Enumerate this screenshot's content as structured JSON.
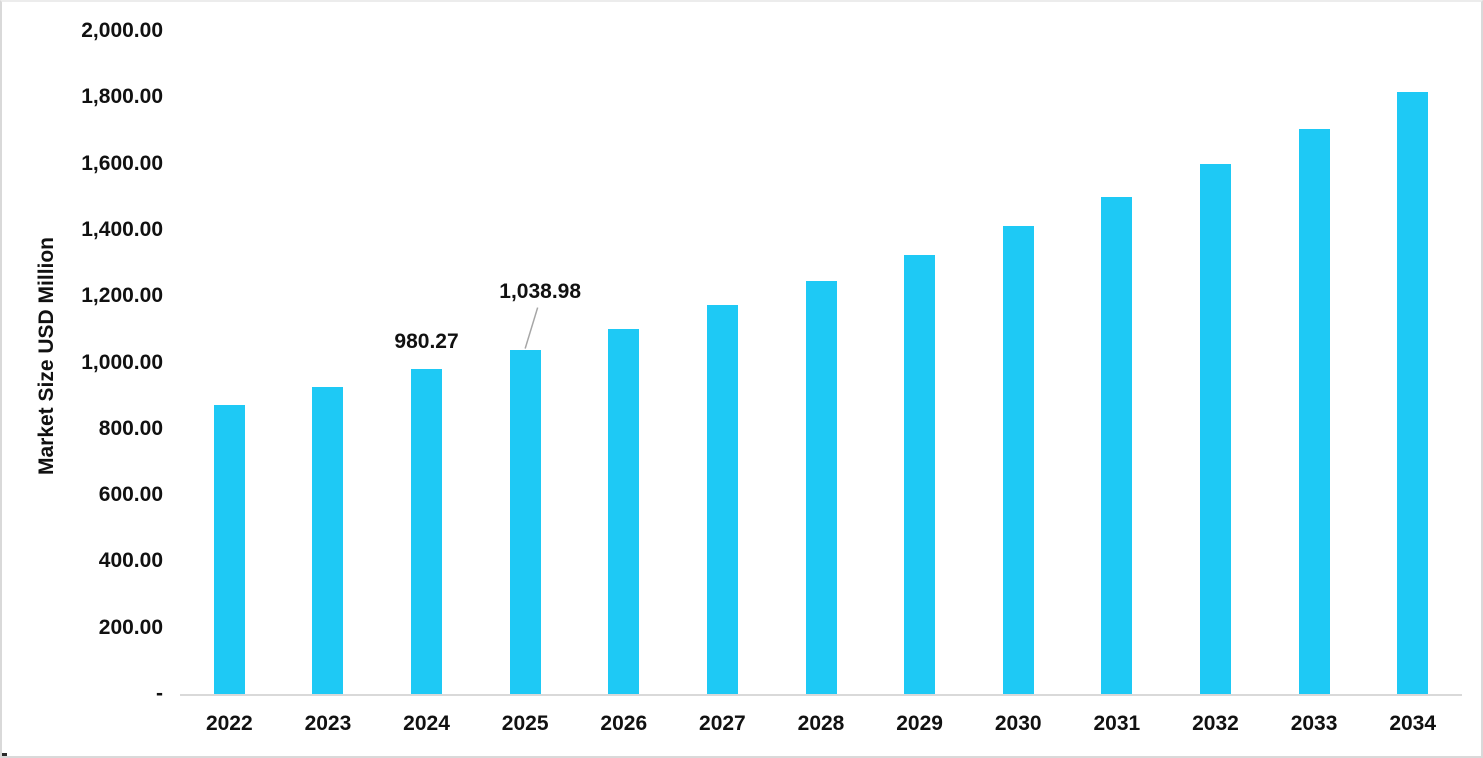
{
  "chart_data": {
    "type": "bar",
    "title": "",
    "xlabel": "",
    "ylabel": "Market Size USD Million",
    "categories": [
      "2022",
      "2023",
      "2024",
      "2025",
      "2026",
      "2027",
      "2028",
      "2029",
      "2030",
      "2031",
      "2032",
      "2033",
      "2034"
    ],
    "values": [
      872,
      926,
      980.27,
      1038.98,
      1101,
      1174,
      1246,
      1323,
      1411,
      1498,
      1598,
      1703,
      1817
    ],
    "ylim": [
      0,
      2000
    ],
    "y_ticks": [
      {
        "value": 2000,
        "label": "2,000.00"
      },
      {
        "value": 1800,
        "label": "1,800.00"
      },
      {
        "value": 1600,
        "label": "1,600.00"
      },
      {
        "value": 1400,
        "label": "1,400.00"
      },
      {
        "value": 1200,
        "label": "1,200.00"
      },
      {
        "value": 1000,
        "label": "1,000.00"
      },
      {
        "value": 800,
        "label": "800.00"
      },
      {
        "value": 600,
        "label": "600.00"
      },
      {
        "value": 400,
        "label": "400.00"
      },
      {
        "value": 200,
        "label": "200.00"
      },
      {
        "value": 0,
        "label": "-"
      }
    ],
    "grid": false,
    "legend": false,
    "annotations": [
      {
        "category": "2024",
        "text": "980.27",
        "style": "above"
      },
      {
        "category": "2025",
        "text": "1,038.98",
        "style": "callout"
      }
    ],
    "colors": {
      "bar": "#1ec9f5",
      "axis_line": "#d9d9d9",
      "text": "#111111",
      "leader_line": "#a6a6a6",
      "border": "#d9d9d9",
      "background": "#ffffff"
    }
  }
}
